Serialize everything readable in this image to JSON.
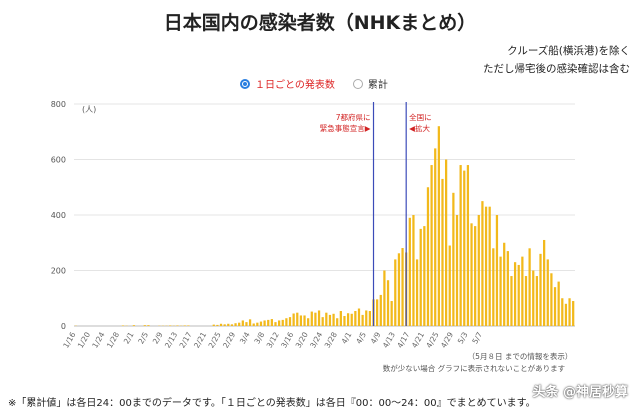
{
  "title": "日本国内の感染者数（NHKまとめ）",
  "notes": [
    "クルーズ船(横浜港)を除く",
    "ただし帰宅後の感染確認は含む"
  ],
  "toggle": {
    "option_daily": "１日ごとの発表数",
    "option_cumulative": "累計",
    "selected": "daily"
  },
  "info": [
    "（5月８日 までの情報を表示）",
    "数が少ない場合 グラフに表示されないことがあります"
  ],
  "footnote": "※「累計値」は各日24：00までのデータです。「１日ごとの発表数」は各日『00：00〜24：00』でまとめています。",
  "watermark": "头条 @神居秒算",
  "colors": {
    "bar": "#f2b91b",
    "marker": "#3b4bb8",
    "annotation": "#d22222"
  },
  "chart_data": {
    "type": "bar",
    "ylabel": "(人)",
    "ylim": [
      0,
      800
    ],
    "yticks": [
      0,
      200,
      400,
      600,
      800
    ],
    "grid": true,
    "x_tick_labels": [
      "1/16",
      "1/20",
      "1/24",
      "1/28",
      "2/1",
      "2/5",
      "2/9",
      "2/13",
      "2/17",
      "2/21",
      "2/25",
      "2/29",
      "3/4",
      "3/8",
      "3/12",
      "3/16",
      "3/20",
      "3/24",
      "3/28",
      "4/1",
      "4/5",
      "4/9",
      "4/13",
      "4/17",
      "4/21",
      "4/25",
      "4/29",
      "5/3",
      "5/7"
    ],
    "start_date": "1/16",
    "values": [
      1,
      0,
      0,
      0,
      0,
      0,
      0,
      0,
      0,
      0,
      0,
      0,
      0,
      2,
      1,
      0,
      3,
      0,
      0,
      3,
      3,
      0,
      0,
      1,
      1,
      1,
      2,
      1,
      2,
      1,
      2,
      2,
      0,
      0,
      0,
      0,
      0,
      0,
      5,
      4,
      8,
      6,
      8,
      6,
      10,
      12,
      20,
      14,
      24,
      9,
      12,
      16,
      20,
      22,
      25,
      14,
      20,
      22,
      28,
      32,
      45,
      48,
      38,
      38,
      28,
      52,
      48,
      56,
      32,
      48,
      40,
      44,
      28,
      54,
      36,
      46,
      44,
      54,
      63,
      40,
      56,
      54,
      96,
      96,
      112,
      200,
      165,
      90,
      240,
      262,
      281,
      265,
      390,
      400,
      240,
      350,
      360,
      500,
      580,
      640,
      720,
      530,
      600,
      290,
      480,
      400,
      580,
      560,
      580,
      370,
      360,
      400,
      450,
      430,
      430,
      280,
      400,
      250,
      300,
      270,
      180,
      230,
      220,
      250,
      180,
      280,
      200,
      180,
      260,
      310,
      240,
      190,
      140,
      160,
      100,
      80,
      100,
      90
    ]
  },
  "annotations": [
    {
      "label_lines": [
        "7都府県に",
        "緊急事態宣言▶"
      ],
      "date": "4/7"
    },
    {
      "label_lines": [
        "全国に",
        "◀拡大"
      ],
      "date": "4/16"
    }
  ]
}
